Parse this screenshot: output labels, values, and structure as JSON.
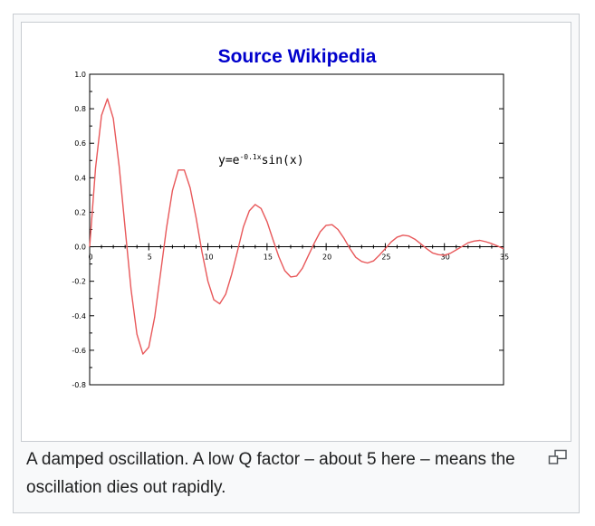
{
  "figure": {
    "caption": "A damped oscillation. A low Q factor – about 5 here – means the oscillation dies out rapidly.",
    "magnify_icon": "enlarge-icon"
  },
  "chart_data": {
    "type": "line",
    "title": "Source Wikipedia",
    "annotation": "y=e^(-0.1x)sin(x)",
    "annotation_parts": {
      "base": "y=e",
      "exponent": "-0.1x",
      "rest": "sin(x)"
    },
    "xlabel": "",
    "ylabel": "",
    "xlim": [
      0,
      35
    ],
    "ylim": [
      -0.8,
      1.0
    ],
    "x_ticks": [
      0,
      5,
      10,
      15,
      20,
      25,
      30,
      35
    ],
    "x_tick_labels": [
      "0",
      "5",
      "10",
      "15",
      "20",
      "25",
      "30",
      "35"
    ],
    "y_ticks": [
      1.0,
      0.8,
      0.6,
      0.4,
      0.2,
      0.0,
      -0.2,
      -0.4,
      -0.6,
      -0.8
    ],
    "y_tick_labels": [
      "1.0",
      "0.8",
      "0.6",
      "0.4",
      "0.2",
      "0.0",
      "-0.2",
      "-0.4",
      "-0.6",
      "-0.8"
    ],
    "grid": false,
    "series": [
      {
        "color": "#e8585a",
        "x": [
          0,
          0.5,
          1,
          1.5,
          2,
          2.5,
          3,
          3.5,
          4,
          4.5,
          5,
          5.5,
          6,
          6.5,
          7,
          7.5,
          8,
          8.5,
          9,
          9.5,
          10,
          10.5,
          11,
          11.5,
          12,
          12.5,
          13,
          13.5,
          14,
          14.5,
          15,
          15.5,
          16,
          16.5,
          17,
          17.5,
          18,
          18.5,
          19,
          19.5,
          20,
          20.5,
          21,
          21.5,
          22,
          22.5,
          23,
          23.5,
          24,
          24.5,
          25,
          25.5,
          26,
          26.5,
          27,
          27.5,
          28,
          28.5,
          29,
          29.5,
          30,
          30.5,
          31,
          31.5,
          32,
          32.5,
          33,
          33.5,
          34,
          34.5,
          35
        ],
        "y": [
          0.0,
          0.456,
          0.761,
          0.858,
          0.744,
          0.466,
          0.105,
          -0.247,
          -0.507,
          -0.622,
          -0.582,
          -0.408,
          -0.153,
          0.11,
          0.325,
          0.445,
          0.445,
          0.341,
          0.169,
          -0.029,
          -0.2,
          -0.307,
          -0.331,
          -0.275,
          -0.162,
          -0.026,
          0.114,
          0.208,
          0.245,
          0.222,
          0.145,
          0.042,
          -0.058,
          -0.138,
          -0.175,
          -0.17,
          -0.124,
          -0.05,
          0.022,
          0.087,
          0.124,
          0.128,
          0.1,
          0.05,
          -0.01,
          -0.061,
          -0.085,
          -0.094,
          -0.082,
          -0.049,
          -0.011,
          0.028,
          0.056,
          0.067,
          0.062,
          0.044,
          0.017,
          -0.011,
          -0.036,
          -0.046,
          -0.049,
          -0.038,
          -0.018,
          0.002,
          0.023,
          0.033,
          0.037,
          0.029,
          0.018,
          0.004,
          -0.012
        ]
      }
    ]
  }
}
